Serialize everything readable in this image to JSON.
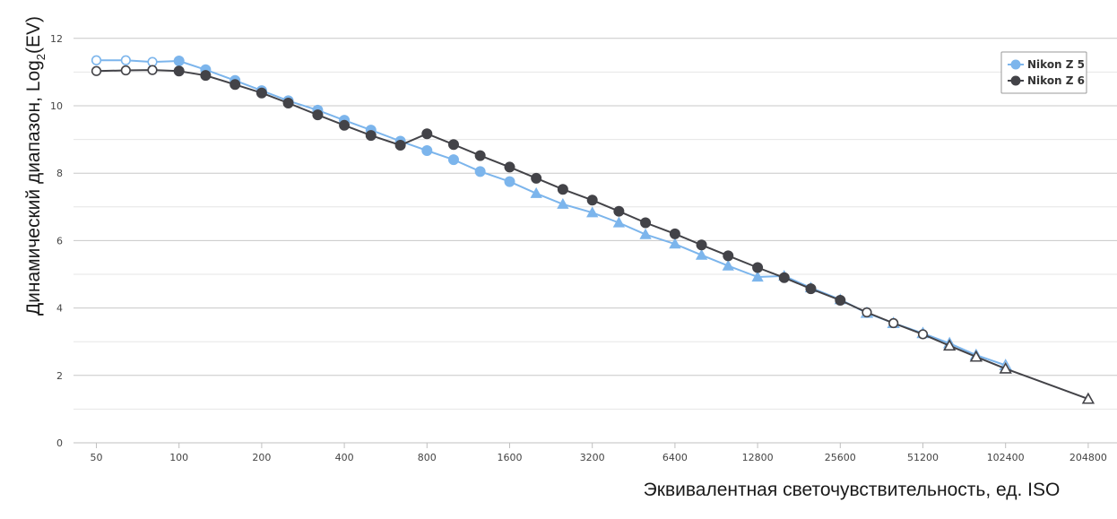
{
  "chart_data": {
    "type": "line",
    "title": "",
    "xlabel": "Эквивалентная светочувствительность, ед. ISO",
    "ylabel_main": "Динамический диапазон, Log",
    "ylabel_sub": "2",
    "ylabel_tail": "(EV)",
    "x_scale": "log2",
    "x_ticks": [
      50,
      100,
      200,
      400,
      800,
      1600,
      3200,
      6400,
      12800,
      25600,
      51200,
      102400,
      204800
    ],
    "y_ticks": [
      0,
      2,
      4,
      6,
      8,
      10,
      12
    ],
    "ylim": [
      0,
      12
    ],
    "grid": true,
    "legend_position": "top-right",
    "series": [
      {
        "name": "Nikon Z 5",
        "color": "#7cb5ec",
        "points": [
          {
            "x": 50,
            "y": 11.35,
            "marker": "circle-open"
          },
          {
            "x": 64,
            "y": 11.35,
            "marker": "circle-open"
          },
          {
            "x": 80,
            "y": 11.3,
            "marker": "circle-open"
          },
          {
            "x": 100,
            "y": 11.33,
            "marker": "circle"
          },
          {
            "x": 125,
            "y": 11.07,
            "marker": "circle"
          },
          {
            "x": 160,
            "y": 10.75,
            "marker": "circle"
          },
          {
            "x": 200,
            "y": 10.45,
            "marker": "circle"
          },
          {
            "x": 250,
            "y": 10.15,
            "marker": "circle"
          },
          {
            "x": 320,
            "y": 9.87,
            "marker": "circle"
          },
          {
            "x": 400,
            "y": 9.57,
            "marker": "circle"
          },
          {
            "x": 500,
            "y": 9.28,
            "marker": "circle"
          },
          {
            "x": 640,
            "y": 8.95,
            "marker": "circle"
          },
          {
            "x": 800,
            "y": 8.67,
            "marker": "circle"
          },
          {
            "x": 1000,
            "y": 8.4,
            "marker": "circle"
          },
          {
            "x": 1250,
            "y": 8.05,
            "marker": "circle"
          },
          {
            "x": 1600,
            "y": 7.75,
            "marker": "circle"
          },
          {
            "x": 2000,
            "y": 7.4,
            "marker": "triangle"
          },
          {
            "x": 2500,
            "y": 7.08,
            "marker": "triangle"
          },
          {
            "x": 3200,
            "y": 6.83,
            "marker": "triangle"
          },
          {
            "x": 4000,
            "y": 6.53,
            "marker": "triangle"
          },
          {
            "x": 5000,
            "y": 6.18,
            "marker": "triangle"
          },
          {
            "x": 6400,
            "y": 5.9,
            "marker": "triangle"
          },
          {
            "x": 8000,
            "y": 5.57,
            "marker": "triangle"
          },
          {
            "x": 10000,
            "y": 5.25,
            "marker": "triangle"
          },
          {
            "x": 12800,
            "y": 4.92,
            "marker": "triangle"
          },
          {
            "x": 16000,
            "y": 4.95,
            "marker": "triangle"
          },
          {
            "x": 20000,
            "y": 4.6,
            "marker": "triangle"
          },
          {
            "x": 25600,
            "y": 4.25,
            "marker": "triangle"
          },
          {
            "x": 32000,
            "y": 3.85,
            "marker": "triangle-open"
          },
          {
            "x": 40000,
            "y": 3.55,
            "marker": "triangle-open"
          },
          {
            "x": 51200,
            "y": 3.25,
            "marker": "triangle-open"
          },
          {
            "x": 64000,
            "y": 2.95,
            "marker": "triangle-open"
          },
          {
            "x": 80000,
            "y": 2.6,
            "marker": "triangle-open"
          },
          {
            "x": 102400,
            "y": 2.3,
            "marker": "triangle-open"
          }
        ]
      },
      {
        "name": "Nikon Z 6",
        "color": "#434348",
        "points": [
          {
            "x": 50,
            "y": 11.03,
            "marker": "circle-open"
          },
          {
            "x": 64,
            "y": 11.05,
            "marker": "circle-open"
          },
          {
            "x": 80,
            "y": 11.06,
            "marker": "circle-open"
          },
          {
            "x": 100,
            "y": 11.03,
            "marker": "circle"
          },
          {
            "x": 125,
            "y": 10.9,
            "marker": "circle"
          },
          {
            "x": 160,
            "y": 10.63,
            "marker": "circle"
          },
          {
            "x": 200,
            "y": 10.38,
            "marker": "circle"
          },
          {
            "x": 250,
            "y": 10.08,
            "marker": "circle"
          },
          {
            "x": 320,
            "y": 9.73,
            "marker": "circle"
          },
          {
            "x": 400,
            "y": 9.42,
            "marker": "circle"
          },
          {
            "x": 500,
            "y": 9.12,
            "marker": "circle"
          },
          {
            "x": 640,
            "y": 8.83,
            "marker": "circle"
          },
          {
            "x": 800,
            "y": 9.17,
            "marker": "circle"
          },
          {
            "x": 1000,
            "y": 8.85,
            "marker": "circle"
          },
          {
            "x": 1250,
            "y": 8.52,
            "marker": "circle"
          },
          {
            "x": 1600,
            "y": 8.18,
            "marker": "circle"
          },
          {
            "x": 2000,
            "y": 7.85,
            "marker": "circle"
          },
          {
            "x": 2500,
            "y": 7.52,
            "marker": "circle"
          },
          {
            "x": 3200,
            "y": 7.2,
            "marker": "circle"
          },
          {
            "x": 4000,
            "y": 6.87,
            "marker": "circle"
          },
          {
            "x": 5000,
            "y": 6.53,
            "marker": "circle"
          },
          {
            "x": 6400,
            "y": 6.2,
            "marker": "circle"
          },
          {
            "x": 8000,
            "y": 5.87,
            "marker": "circle"
          },
          {
            "x": 10000,
            "y": 5.55,
            "marker": "circle"
          },
          {
            "x": 12800,
            "y": 5.2,
            "marker": "circle"
          },
          {
            "x": 16000,
            "y": 4.9,
            "marker": "circle"
          },
          {
            "x": 20000,
            "y": 4.57,
            "marker": "circle"
          },
          {
            "x": 25600,
            "y": 4.23,
            "marker": "circle"
          },
          {
            "x": 32000,
            "y": 3.87,
            "marker": "circle-open"
          },
          {
            "x": 40000,
            "y": 3.55,
            "marker": "circle-open"
          },
          {
            "x": 51200,
            "y": 3.22,
            "marker": "circle-open"
          },
          {
            "x": 64000,
            "y": 2.88,
            "marker": "triangle-open"
          },
          {
            "x": 80000,
            "y": 2.55,
            "marker": "triangle-open"
          },
          {
            "x": 102400,
            "y": 2.2,
            "marker": "triangle-open"
          },
          {
            "x": 204800,
            "y": 1.3,
            "marker": "triangle-open"
          }
        ]
      }
    ]
  }
}
